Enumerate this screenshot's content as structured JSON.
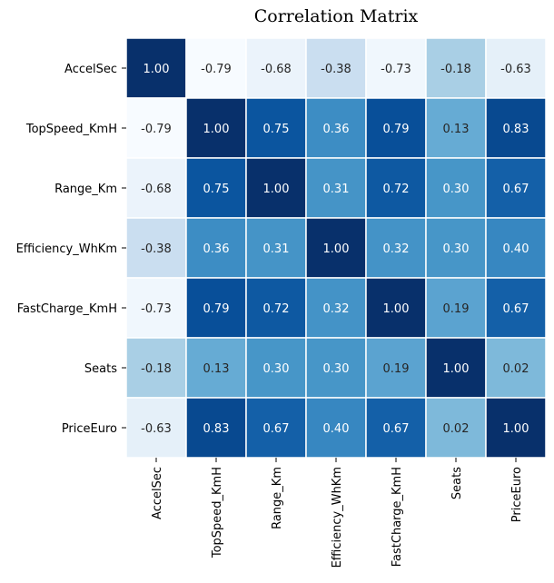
{
  "chart_data": {
    "type": "heatmap",
    "title": "Correlation Matrix",
    "xlabel": "",
    "ylabel": "",
    "colormap": "Blues",
    "value_range": [
      -0.79,
      1.0
    ],
    "grid_line_color": "#ffffff",
    "colorbar": false,
    "row_labels": [
      "AccelSec",
      "TopSpeed_KmH",
      "Range_Km",
      "Efficiency_WhKm",
      "FastCharge_KmH",
      "Seats",
      "PriceEuro"
    ],
    "col_labels": [
      "AccelSec",
      "TopSpeed_KmH",
      "Range_Km",
      "Efficiency_WhKm",
      "FastCharge_KmH",
      "Seats",
      "PriceEuro"
    ],
    "values": [
      [
        1.0,
        -0.79,
        -0.68,
        -0.38,
        -0.73,
        -0.18,
        -0.63
      ],
      [
        -0.79,
        1.0,
        0.75,
        0.36,
        0.79,
        0.13,
        0.83
      ],
      [
        -0.68,
        0.75,
        1.0,
        0.31,
        0.72,
        0.3,
        0.67
      ],
      [
        -0.38,
        0.36,
        0.31,
        1.0,
        0.32,
        0.3,
        0.4
      ],
      [
        -0.73,
        0.79,
        0.72,
        0.32,
        1.0,
        0.19,
        0.67
      ],
      [
        -0.18,
        0.13,
        0.3,
        0.3,
        0.19,
        1.0,
        0.02
      ],
      [
        -0.63,
        0.83,
        0.67,
        0.4,
        0.67,
        0.02,
        1.0
      ]
    ],
    "cell_labels": [
      [
        "1.00",
        "-0.79",
        "-0.68",
        "-0.38",
        "-0.73",
        "-0.18",
        "-0.63"
      ],
      [
        "-0.79",
        "1.00",
        "0.75",
        "0.36",
        "0.79",
        "0.13",
        "0.83"
      ],
      [
        "-0.68",
        "0.75",
        "1.00",
        "0.31",
        "0.72",
        "0.30",
        "0.67"
      ],
      [
        "-0.38",
        "0.36",
        "0.31",
        "1.00",
        "0.32",
        "0.30",
        "0.40"
      ],
      [
        "-0.73",
        "0.79",
        "0.72",
        "0.32",
        "1.00",
        "0.19",
        "0.67"
      ],
      [
        "-0.18",
        "0.13",
        "0.30",
        "0.30",
        "0.19",
        "1.00",
        "0.02"
      ],
      [
        "-0.63",
        "0.83",
        "0.67",
        "0.40",
        "0.67",
        "0.02",
        "1.00"
      ]
    ]
  }
}
